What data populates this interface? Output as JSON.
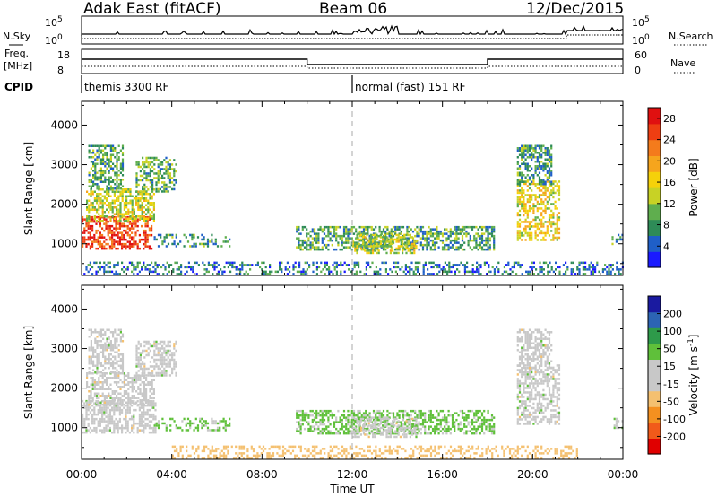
{
  "header": {
    "station": "Adak East (fitACF)",
    "beam": "Beam 06",
    "date": "12/Dec/2015"
  },
  "noise_panel": {
    "left_label": "N.Sky",
    "right_label": "N.Search",
    "left_ticks": [
      "10^5",
      "10^0"
    ],
    "right_ticks": [
      "10^5",
      "10^0"
    ]
  },
  "freq_panel": {
    "left_label": "Freq.",
    "left_unit": "[MHz]",
    "right_label": "Nave",
    "left_ticks": [
      "18",
      "8"
    ],
    "right_ticks": [
      "60",
      "0"
    ]
  },
  "cpid": {
    "label": "CPID",
    "modes": [
      {
        "text": "themis 3300 RF",
        "start_hour": 0
      },
      {
        "text": "normal (fast) 151 RF",
        "start_hour": 12
      }
    ]
  },
  "chart_data": [
    {
      "type": "heatmap",
      "quantity": "power",
      "ylabel": "Slant Range [km]",
      "xlabel": "",
      "x_range_hours": [
        0,
        24
      ],
      "ylim": [
        200,
        4600
      ],
      "y_ticks": [
        1000,
        2000,
        3000,
        4000
      ],
      "colorbar": {
        "label": "Power [dB]",
        "ticks": [
          "4",
          "8",
          "12",
          "16",
          "20",
          "24",
          "28"
        ],
        "range": [
          0,
          30
        ],
        "colors": [
          "#1a1aff",
          "#1f5fc8",
          "#2e8b57",
          "#5fae4e",
          "#c8d225",
          "#f5d10a",
          "#f6a51d",
          "#f47b1c",
          "#ee3e12",
          "#e01010"
        ]
      },
      "echo_regions": [
        {
          "t0": 0.0,
          "t1": 3.1,
          "r0": 900,
          "r1": 1700,
          "level": 26
        },
        {
          "t0": 0.2,
          "t1": 3.2,
          "r0": 1600,
          "r1": 2400,
          "level": 14
        },
        {
          "t0": 0.3,
          "t1": 1.8,
          "r0": 2400,
          "r1": 3500,
          "level": 9
        },
        {
          "t0": 2.4,
          "t1": 4.2,
          "r0": 2300,
          "r1": 3200,
          "level": 10
        },
        {
          "t0": 3.2,
          "t1": 6.6,
          "r0": 950,
          "r1": 1250,
          "level": 8
        },
        {
          "t0": 9.5,
          "t1": 18.3,
          "r0": 850,
          "r1": 1450,
          "level": 9
        },
        {
          "t0": 12.0,
          "t1": 14.8,
          "r0": 750,
          "r1": 1250,
          "level": 14
        },
        {
          "t0": 19.3,
          "t1": 21.2,
          "r0": 1100,
          "r1": 2600,
          "level": 16
        },
        {
          "t0": 19.3,
          "t1": 20.8,
          "r0": 2500,
          "r1": 3500,
          "level": 8
        },
        {
          "t0": 23.5,
          "t1": 24.0,
          "r0": 1000,
          "r1": 1250,
          "level": 8
        },
        {
          "t0": 0.0,
          "t1": 24.0,
          "r0": 250,
          "r1": 550,
          "level": 6
        }
      ]
    },
    {
      "type": "heatmap",
      "quantity": "velocity",
      "ylabel": "Slant Range [km]",
      "xlabel": "Time UT",
      "x_range_hours": [
        0,
        24
      ],
      "x_tick_labels": [
        "00:00",
        "04:00",
        "08:00",
        "12:00",
        "16:00",
        "20:00",
        "00:00"
      ],
      "ylim": [
        200,
        4600
      ],
      "y_ticks": [
        1000,
        2000,
        3000,
        4000
      ],
      "colorbar": {
        "label": "Velocity [m s^-1]",
        "ticks": [
          "200",
          "100",
          "50",
          "15",
          "-15",
          "-50",
          "-100",
          "-200"
        ],
        "range": [
          -250,
          250
        ],
        "colors": [
          "#e00000",
          "#f15a1a",
          "#f49020",
          "#f4c070",
          "#c8c8c8",
          "#c8c8c8",
          "#5fc03a",
          "#2e9a4a",
          "#2c64b4",
          "#1a1aa0"
        ]
      },
      "echo_regions": [
        {
          "t0": 0.0,
          "t1": 3.3,
          "r0": 900,
          "r1": 1700,
          "level": 0
        },
        {
          "t0": 0.2,
          "t1": 3.2,
          "r0": 1600,
          "r1": 2400,
          "level": 0
        },
        {
          "t0": 0.3,
          "t1": 1.8,
          "r0": 2400,
          "r1": 3500,
          "level": 0
        },
        {
          "t0": 2.4,
          "t1": 4.2,
          "r0": 2300,
          "r1": 3200,
          "level": 0
        },
        {
          "t0": 3.2,
          "t1": 6.6,
          "r0": 950,
          "r1": 1250,
          "level": 60
        },
        {
          "t0": 9.5,
          "t1": 18.3,
          "r0": 850,
          "r1": 1450,
          "level": 60
        },
        {
          "t0": 12.0,
          "t1": 14.8,
          "r0": 750,
          "r1": 1250,
          "level": 0
        },
        {
          "t0": 19.3,
          "t1": 21.2,
          "r0": 1100,
          "r1": 2600,
          "level": 0
        },
        {
          "t0": 19.3,
          "t1": 20.8,
          "r0": 2500,
          "r1": 3500,
          "level": 0
        },
        {
          "t0": 23.5,
          "t1": 24.0,
          "r0": 1000,
          "r1": 1250,
          "level": 0
        },
        {
          "t0": 4.0,
          "t1": 22.0,
          "r0": 250,
          "r1": 550,
          "level": -70
        }
      ]
    }
  ]
}
